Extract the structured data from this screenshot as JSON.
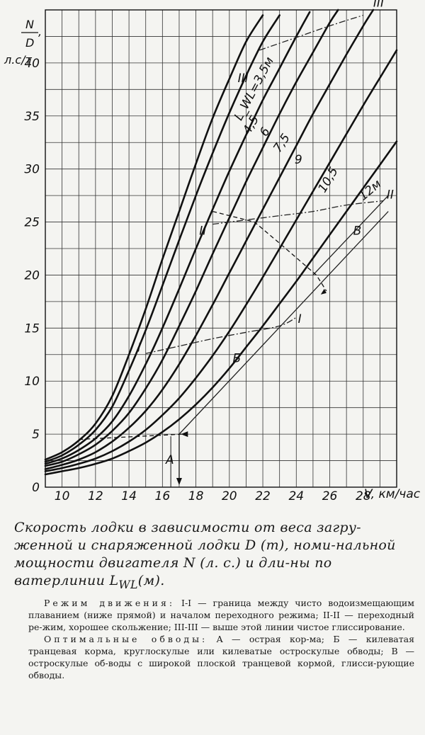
{
  "chart_data": {
    "type": "line",
    "ylabel_top": "N",
    "ylabel_bottom": "D",
    "ylabel_comma": ",",
    "ylabel_units": "л.с/т",
    "xlabel": "V, км/час",
    "xlim": [
      9,
      30
    ],
    "ylim": [
      0,
      45
    ],
    "x_ticks": [
      10,
      12,
      14,
      16,
      18,
      20,
      22,
      24,
      26,
      28
    ],
    "y_ticks": [
      0,
      5,
      10,
      15,
      20,
      25,
      30,
      35,
      40
    ],
    "grid": true,
    "series": [
      {
        "name": "L_WL=3,5м",
        "points": [
          [
            9,
            2.6
          ],
          [
            10,
            3.3
          ],
          [
            11,
            4.4
          ],
          [
            12,
            6
          ],
          [
            13,
            8.6
          ],
          [
            14,
            12.5
          ],
          [
            15,
            16.8
          ],
          [
            16,
            21.5
          ],
          [
            17,
            26
          ],
          [
            18,
            30.5
          ],
          [
            19,
            34.8
          ],
          [
            20,
            38.5
          ],
          [
            21,
            42
          ],
          [
            22,
            44.5
          ]
        ]
      },
      {
        "name": "4,5",
        "points": [
          [
            9,
            2.4
          ],
          [
            10,
            3
          ],
          [
            11,
            4
          ],
          [
            12,
            5.4
          ],
          [
            13,
            7.6
          ],
          [
            14,
            11
          ],
          [
            15,
            14.8
          ],
          [
            16,
            19
          ],
          [
            17,
            23.3
          ],
          [
            18,
            27.5
          ],
          [
            19,
            31.5
          ],
          [
            20,
            35.3
          ],
          [
            21,
            38.8
          ],
          [
            22,
            42
          ],
          [
            23,
            44.5
          ]
        ]
      },
      {
        "name": "6",
        "points": [
          [
            9,
            2.2
          ],
          [
            10,
            2.7
          ],
          [
            11,
            3.5
          ],
          [
            12,
            4.6
          ],
          [
            13,
            6.2
          ],
          [
            14,
            8.6
          ],
          [
            15,
            11.6
          ],
          [
            16,
            15
          ],
          [
            17,
            18.7
          ],
          [
            18,
            22.5
          ],
          [
            19,
            26.2
          ],
          [
            20,
            29.8
          ],
          [
            21,
            33.2
          ],
          [
            22,
            36.5
          ],
          [
            23,
            39.5
          ],
          [
            24,
            42.5
          ],
          [
            24.8,
            44.8
          ]
        ]
      },
      {
        "name": "7,5",
        "points": [
          [
            9,
            2
          ],
          [
            10,
            2.4
          ],
          [
            11,
            3.1
          ],
          [
            12,
            4
          ],
          [
            13,
            5.3
          ],
          [
            14,
            7
          ],
          [
            15,
            9.3
          ],
          [
            16,
            12
          ],
          [
            17,
            15.2
          ],
          [
            18,
            18.5
          ],
          [
            19,
            22
          ],
          [
            20,
            25.4
          ],
          [
            21,
            28.8
          ],
          [
            22,
            32
          ],
          [
            23,
            35.2
          ],
          [
            24,
            38.2
          ],
          [
            25,
            41
          ],
          [
            26,
            43.8
          ],
          [
            26.5,
            45
          ]
        ]
      },
      {
        "name": "9",
        "points": [
          [
            9,
            1.7
          ],
          [
            10,
            2.1
          ],
          [
            11,
            2.6
          ],
          [
            12,
            3.3
          ],
          [
            13,
            4.3
          ],
          [
            14,
            5.6
          ],
          [
            15,
            7.2
          ],
          [
            16,
            9.2
          ],
          [
            17,
            11.6
          ],
          [
            18,
            14.3
          ],
          [
            19,
            17.2
          ],
          [
            20,
            20.2
          ],
          [
            21,
            23.2
          ],
          [
            22,
            26.2
          ],
          [
            23,
            29.2
          ],
          [
            24,
            32.2
          ],
          [
            25,
            35.2
          ],
          [
            26,
            38
          ],
          [
            27,
            40.8
          ],
          [
            28,
            43.5
          ],
          [
            28.6,
            45
          ]
        ]
      },
      {
        "name": "10,5",
        "points": [
          [
            9,
            1.5
          ],
          [
            10,
            1.8
          ],
          [
            11,
            2.2
          ],
          [
            12,
            2.7
          ],
          [
            13,
            3.4
          ],
          [
            14,
            4.3
          ],
          [
            15,
            5.4
          ],
          [
            16,
            6.8
          ],
          [
            17,
            8.4
          ],
          [
            18,
            10.3
          ],
          [
            19,
            12.4
          ],
          [
            20,
            14.7
          ],
          [
            21,
            17.2
          ],
          [
            22,
            19.8
          ],
          [
            23,
            22.5
          ],
          [
            24,
            25.2
          ],
          [
            25,
            27.9
          ],
          [
            26,
            30.6
          ],
          [
            27,
            33.3
          ],
          [
            28,
            36
          ],
          [
            29,
            38.6
          ],
          [
            30,
            41.2
          ]
        ]
      },
      {
        "name": "12м",
        "points": [
          [
            9,
            1.2
          ],
          [
            10,
            1.5
          ],
          [
            11,
            1.8
          ],
          [
            12,
            2.2
          ],
          [
            13,
            2.7
          ],
          [
            14,
            3.4
          ],
          [
            15,
            4.2
          ],
          [
            16,
            5.2
          ],
          [
            17,
            6.4
          ],
          [
            18,
            7.8
          ],
          [
            19,
            9.4
          ],
          [
            20,
            11.2
          ],
          [
            21,
            13.2
          ],
          [
            22,
            15.2
          ],
          [
            23,
            17.3
          ],
          [
            24,
            19.4
          ],
          [
            25,
            21.6
          ],
          [
            26,
            23.8
          ],
          [
            27,
            26
          ],
          [
            28,
            28.2
          ],
          [
            29,
            30.4
          ],
          [
            30,
            32.6
          ]
        ]
      }
    ],
    "boundaries": [
      {
        "name": "I",
        "points": [
          [
            15,
            12.6
          ],
          [
            17,
            13.3
          ],
          [
            19,
            14
          ],
          [
            21,
            14.6
          ],
          [
            23,
            15.2
          ],
          [
            24,
            16
          ]
        ]
      },
      {
        "name": "II",
        "points": [
          [
            19,
            24.8
          ],
          [
            21,
            25.2
          ],
          [
            23,
            25.6
          ],
          [
            25,
            26
          ],
          [
            27,
            26.6
          ],
          [
            29.2,
            27
          ]
        ]
      },
      {
        "name": "III",
        "points": [
          [
            21.8,
            41.2
          ],
          [
            24,
            42.4
          ],
          [
            26,
            43.5
          ],
          [
            28,
            44.5
          ]
        ]
      }
    ],
    "hull_lines": [
      {
        "name": "Б",
        "points": [
          [
            17,
            5
          ],
          [
            29.5,
            26
          ]
        ]
      },
      {
        "name": "В",
        "points": [
          [
            25,
            20
          ],
          [
            29.5,
            27.5
          ]
        ]
      }
    ],
    "annotations": {
      "A": "A",
      "I_label": "I",
      "II_left": "II",
      "II_right": "II",
      "III_left": "III",
      "III_top": "III"
    }
  },
  "caption": {
    "part1": "Скорость лодки в зависимости от веса загру-женной и снаряженной лодки D (т), номи-нальной мощности двигателя N (л. с.) и дли-ны по ватерлинии L",
    "sub": "WL",
    "part2": "(м)."
  },
  "notes": {
    "p1_title": "Режим движения:",
    "p1_text": "I-I — граница между чисто водоизмещающим плаванием (ниже прямой) и началом переходного режима; II-II — переходный ре-жим, хорошее скольжение; III-III — выше этой линии чистое глиссирование.",
    "p2_title": "Оптимальные обводы:",
    "p2_text": "A — острая кор-ма; Б — килеватая транцевая корма, круглоскулые или килеватые остроскулые обводы; В — остроскулые об-воды с широкой плоской транцевой кормой, глисси-рующие обводы."
  }
}
